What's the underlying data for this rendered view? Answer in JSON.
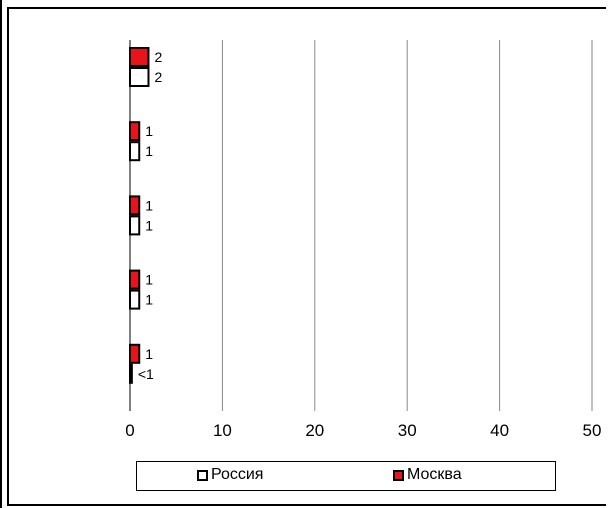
{
  "chart_data": {
    "type": "bar",
    "orientation": "horizontal",
    "categories": [
      "",
      "",
      "",
      "",
      ""
    ],
    "series": [
      {
        "name": "Москва",
        "color": "#e8141b",
        "values": [
          2,
          1,
          1,
          1,
          1
        ],
        "labels": [
          "2",
          "1",
          "1",
          "1",
          "1"
        ]
      },
      {
        "name": "Россия",
        "color": "#ffffff",
        "values": [
          2,
          1,
          1,
          1,
          0.2
        ],
        "labels": [
          "2",
          "1",
          "1",
          "1",
          "<1"
        ]
      }
    ],
    "xlim": [
      0,
      50
    ],
    "xticks": [
      "0",
      "10",
      "20",
      "30",
      "40",
      "50"
    ],
    "grid": true,
    "legend": {
      "position": "bottom",
      "entries": [
        {
          "name": "Россия",
          "color": "#ffffff"
        },
        {
          "name": "Москва",
          "color": "#e8141b"
        }
      ]
    }
  }
}
